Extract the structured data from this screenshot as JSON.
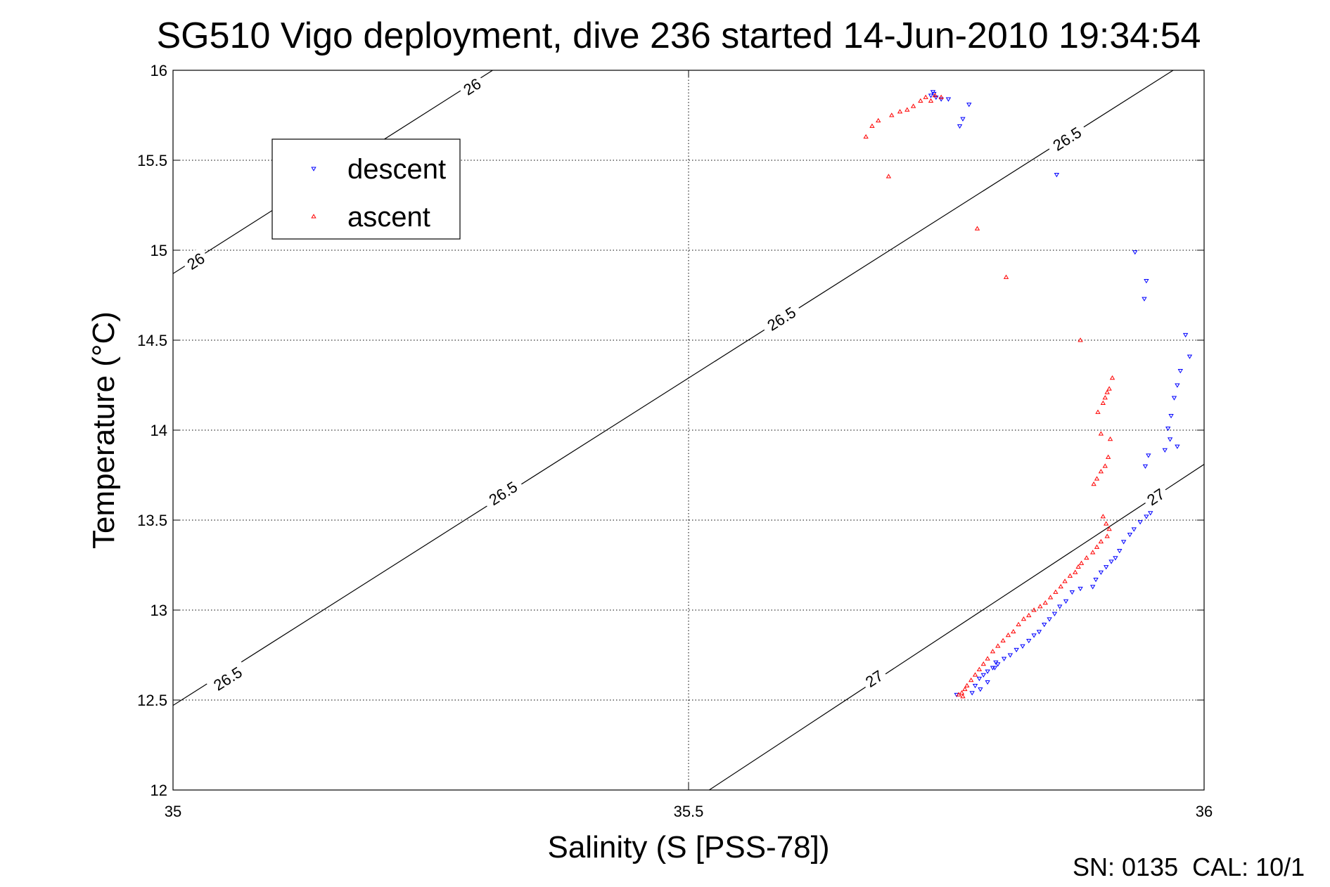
{
  "chart_data": {
    "type": "scatter",
    "title": "SG510 Vigo deployment, dive 236 started 14-Jun-2010 19:34:54",
    "xlabel": "Salinity (S [PSS-78])",
    "ylabel": "Temperature (°C)",
    "xlim": [
      35,
      36
    ],
    "ylim": [
      12,
      16
    ],
    "x_ticks": [
      "35",
      "35.5",
      "36"
    ],
    "y_ticks": [
      "12",
      "12.5",
      "13",
      "13.5",
      "14",
      "14.5",
      "15",
      "15.5",
      "16"
    ],
    "grid": true,
    "legend_position": "top-left",
    "footer": "SN: 0135  CAL: 10/1",
    "colors": {
      "descent": "#0000ff",
      "ascent": "#ff0000",
      "axis": "#000000",
      "grid": "#000000"
    },
    "isopycnals": [
      {
        "label": "26",
        "points": [
          [
            35.0,
            14.87
          ],
          [
            35.31,
            16.0
          ]
        ],
        "label_positions": [
          [
            35.022,
            14.94
          ],
          [
            35.29,
            15.91
          ]
        ]
      },
      {
        "label": "26.5",
        "points": [
          [
            35.0,
            12.47
          ],
          [
            35.97,
            16.0
          ]
        ],
        "label_positions": [
          [
            35.053,
            12.62
          ],
          [
            35.32,
            13.65
          ],
          [
            35.59,
            14.62
          ],
          [
            35.867,
            15.62
          ]
        ]
      },
      {
        "label": "27",
        "points": [
          [
            35.52,
            12.0
          ],
          [
            36.0,
            13.81
          ]
        ],
        "label_positions": [
          [
            35.68,
            12.62
          ],
          [
            35.953,
            13.63
          ]
        ]
      }
    ],
    "series": [
      {
        "name": "descent",
        "marker": "triangle-down",
        "points": [
          [
            35.737,
            15.88
          ],
          [
            35.738,
            15.87
          ],
          [
            35.735,
            15.86
          ],
          [
            35.74,
            15.85
          ],
          [
            35.745,
            15.84
          ],
          [
            35.752,
            15.84
          ],
          [
            35.772,
            15.81
          ],
          [
            35.766,
            15.73
          ],
          [
            35.763,
            15.69
          ],
          [
            35.857,
            15.42
          ],
          [
            35.933,
            14.99
          ],
          [
            35.944,
            14.83
          ],
          [
            35.942,
            14.73
          ],
          [
            35.982,
            14.53
          ],
          [
            35.986,
            14.41
          ],
          [
            35.977,
            14.33
          ],
          [
            35.974,
            14.25
          ],
          [
            35.971,
            14.18
          ],
          [
            35.968,
            14.08
          ],
          [
            35.965,
            14.01
          ],
          [
            35.967,
            13.95
          ],
          [
            35.974,
            13.91
          ],
          [
            35.962,
            13.89
          ],
          [
            35.946,
            13.86
          ],
          [
            35.943,
            13.8
          ],
          [
            35.948,
            13.54
          ],
          [
            35.944,
            13.52
          ],
          [
            35.938,
            13.49
          ],
          [
            35.932,
            13.45
          ],
          [
            35.928,
            13.42
          ],
          [
            35.922,
            13.38
          ],
          [
            35.918,
            13.33
          ],
          [
            35.914,
            13.29
          ],
          [
            35.91,
            13.27
          ],
          [
            35.905,
            13.24
          ],
          [
            35.9,
            13.21
          ],
          [
            35.895,
            13.17
          ],
          [
            35.892,
            13.13
          ],
          [
            35.88,
            13.12
          ],
          [
            35.872,
            13.1
          ],
          [
            35.866,
            13.05
          ],
          [
            35.86,
            13.02
          ],
          [
            35.855,
            12.98
          ],
          [
            35.85,
            12.95
          ],
          [
            35.845,
            12.92
          ],
          [
            35.84,
            12.88
          ],
          [
            35.835,
            12.86
          ],
          [
            35.83,
            12.83
          ],
          [
            35.824,
            12.8
          ],
          [
            35.818,
            12.78
          ],
          [
            35.812,
            12.75
          ],
          [
            35.806,
            12.73
          ],
          [
            35.8,
            12.7
          ],
          [
            35.795,
            12.68
          ],
          [
            35.79,
            12.66
          ],
          [
            35.786,
            12.64
          ],
          [
            35.782,
            12.62
          ],
          [
            35.798,
            12.71
          ],
          [
            35.778,
            12.58
          ],
          [
            35.783,
            12.56
          ],
          [
            35.775,
            12.54
          ],
          [
            35.79,
            12.6
          ],
          [
            35.797,
            12.68
          ],
          [
            35.76,
            12.53
          ]
        ]
      },
      {
        "name": "ascent",
        "marker": "triangle-up",
        "points": [
          [
            35.672,
            15.63
          ],
          [
            35.678,
            15.69
          ],
          [
            35.684,
            15.72
          ],
          [
            35.697,
            15.75
          ],
          [
            35.705,
            15.77
          ],
          [
            35.712,
            15.78
          ],
          [
            35.718,
            15.8
          ],
          [
            35.725,
            15.83
          ],
          [
            35.73,
            15.85
          ],
          [
            35.735,
            15.83
          ],
          [
            35.745,
            15.85
          ],
          [
            35.739,
            15.86
          ],
          [
            35.694,
            15.41
          ],
          [
            35.78,
            15.12
          ],
          [
            35.808,
            14.85
          ],
          [
            35.88,
            14.5
          ],
          [
            35.911,
            14.29
          ],
          [
            35.908,
            14.23
          ],
          [
            35.906,
            14.21
          ],
          [
            35.904,
            14.18
          ],
          [
            35.902,
            14.15
          ],
          [
            35.897,
            14.1
          ],
          [
            35.9,
            13.98
          ],
          [
            35.909,
            13.95
          ],
          [
            35.907,
            13.85
          ],
          [
            35.904,
            13.8
          ],
          [
            35.9,
            13.77
          ],
          [
            35.896,
            13.73
          ],
          [
            35.893,
            13.7
          ],
          [
            35.902,
            13.52
          ],
          [
            35.905,
            13.48
          ],
          [
            35.908,
            13.45
          ],
          [
            35.906,
            13.41
          ],
          [
            35.9,
            13.38
          ],
          [
            35.896,
            13.35
          ],
          [
            35.892,
            13.32
          ],
          [
            35.886,
            13.29
          ],
          [
            35.881,
            13.26
          ],
          [
            35.878,
            13.24
          ],
          [
            35.875,
            13.21
          ],
          [
            35.87,
            13.19
          ],
          [
            35.865,
            13.16
          ],
          [
            35.861,
            13.13
          ],
          [
            35.856,
            13.1
          ],
          [
            35.851,
            13.07
          ],
          [
            35.846,
            13.04
          ],
          [
            35.841,
            13.02
          ],
          [
            35.835,
            13.0
          ],
          [
            35.83,
            12.97
          ],
          [
            35.825,
            12.95
          ],
          [
            35.82,
            12.92
          ],
          [
            35.815,
            12.88
          ],
          [
            35.81,
            12.86
          ],
          [
            35.805,
            12.83
          ],
          [
            35.8,
            12.8
          ],
          [
            35.795,
            12.77
          ],
          [
            35.79,
            12.73
          ],
          [
            35.786,
            12.7
          ],
          [
            35.782,
            12.67
          ],
          [
            35.778,
            12.64
          ],
          [
            35.774,
            12.61
          ],
          [
            35.77,
            12.58
          ],
          [
            35.768,
            12.56
          ],
          [
            35.765,
            12.54
          ],
          [
            35.762,
            12.53
          ],
          [
            35.766,
            12.52
          ]
        ]
      }
    ]
  }
}
